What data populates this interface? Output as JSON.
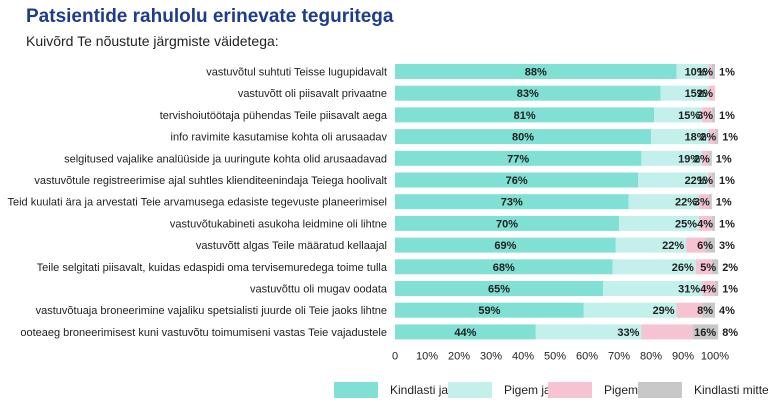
{
  "title": "Patsientide rahulolu erinevate teguritega",
  "subtitle": "Kuivõrd Te nõustute järgmiste väidetega:",
  "colors": {
    "kindlasti_jah": "#7fe0d3",
    "pigem_jah": "#c3f0ea",
    "pigem_mitte": "#f6c3d2",
    "kindlasti_mitte": "#c8c8c8",
    "title": "#1d3c8c"
  },
  "chart_data": {
    "type": "bar",
    "orientation": "horizontal",
    "stacked": true,
    "title": "Patsientide rahulolu erinevate teguritega",
    "subtitle": "Kuivõrd Te nõustute järgmiste väidetega:",
    "xlim": [
      0,
      100
    ],
    "x_ticks": [
      "0",
      "10%",
      "20%",
      "30%",
      "40%",
      "50%",
      "60%",
      "70%",
      "80%",
      "90%",
      "100%"
    ],
    "legend_position": "bottom",
    "categories": [
      "vastuvõtul suhtuti Teisse lugupidavalt",
      "vastuvõtt oli piisavalt privaatne",
      "tervishoiutöötaja pühendas Teile piisavalt aega",
      "info ravimite kasutamise kohta oli arusaadav",
      "selgitused vajalike analüüside ja uuringute kohta olid arusaadavad",
      "vastuvõtule registreerimise ajal suhtles klienditeenindaja Teiega hoolivalt",
      "Teid kuulati ära ja arvestati Teie arvamusega edasiste tegevuste planeerimisel",
      "vastuvõtukabineti asukoha leidmine oli lihtne",
      "vastuvõtt algas Teile määratud kellaajal",
      "Teile selgitati piisavalt, kuidas edaspidi oma tervisemuredega toime tulla",
      "vastuvõttu oli mugav oodata",
      "vastuvõtuaja broneerimine vajaliku spetsialisti juurde oli Teie jaoks lihtne",
      "ooteaeg broneerimisest kuni vastuvõtu toimumiseni vastas Teie vajadustele"
    ],
    "series": [
      {
        "name": "Kindlasti jah",
        "values": [
          88,
          83,
          81,
          80,
          77,
          76,
          73,
          70,
          69,
          68,
          65,
          59,
          44
        ],
        "labels": [
          "88%",
          "83%",
          "81%",
          "80%",
          "77%",
          "76%",
          "73%",
          "70%",
          "69%",
          "68%",
          "65%",
          "59%",
          "44%"
        ]
      },
      {
        "name": "Pigem jah",
        "values": [
          10,
          15,
          15,
          18,
          19,
          22,
          22,
          25,
          22,
          26,
          31,
          29,
          33
        ],
        "labels": [
          "10%",
          "15%",
          "15%",
          "18%",
          "19%",
          "22%",
          "22%",
          "25%",
          "22%",
          "26%",
          "31%",
          "29%",
          "33%"
        ]
      },
      {
        "name": "Pigem mitte",
        "values": [
          1,
          2,
          3,
          2,
          2,
          1,
          3,
          4,
          6,
          5,
          4,
          8,
          16
        ],
        "labels": [
          "1%",
          "2%",
          "3%",
          "2%",
          "2%",
          "1%",
          "3%",
          "4%",
          "6%",
          "5%",
          "4%",
          "8%",
          "16%"
        ]
      },
      {
        "name": "Kindlasti mitte",
        "values": [
          1,
          0,
          1,
          1,
          1,
          1,
          1,
          1,
          3,
          2,
          1,
          4,
          8
        ],
        "labels": [
          "1%",
          "",
          "1%",
          "1%",
          "1%",
          "1%",
          "1%",
          "1%",
          "3%",
          "2%",
          "1%",
          "4%",
          "8%"
        ]
      }
    ]
  }
}
